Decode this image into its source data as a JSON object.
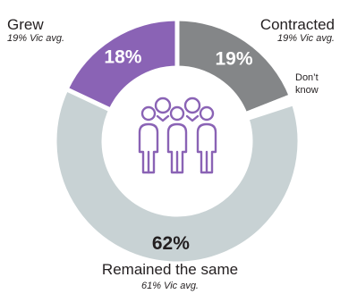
{
  "chart_data": {
    "type": "pie",
    "style": "donut",
    "slices": [
      {
        "label": "Contracted",
        "value": 19,
        "display_value": "19%",
        "vic_avg": "19% Vic avg.",
        "color": "#848688",
        "value_color": "#ffffff"
      },
      {
        "label": "Don't know",
        "value": 1,
        "display_value": "",
        "vic_avg": "",
        "color": "#ffffff",
        "value_color": "#ffffff"
      },
      {
        "label": "Remained the same",
        "value": 62,
        "display_value": "62%",
        "vic_avg": "61% Vic avg.",
        "color": "#c8d2d4",
        "value_color": "#231f20"
      },
      {
        "label": "Grew",
        "value": 18,
        "display_value": "18%",
        "vic_avg": "19% Vic avg.",
        "color": "#8a63b5",
        "value_color": "#ffffff"
      }
    ],
    "center_icon": "group-of-people-icon",
    "icon_color": "#8a63b5"
  },
  "labels": {
    "grew": {
      "name": "Grew",
      "avg": "19% Vic avg."
    },
    "contracted": {
      "name": "Contracted",
      "avg": "19% Vic avg."
    },
    "dont_know": {
      "name_line1": "Don’t",
      "name_line2": "know"
    },
    "remained": {
      "name": "Remained the same",
      "avg": "61% Vic avg."
    }
  }
}
